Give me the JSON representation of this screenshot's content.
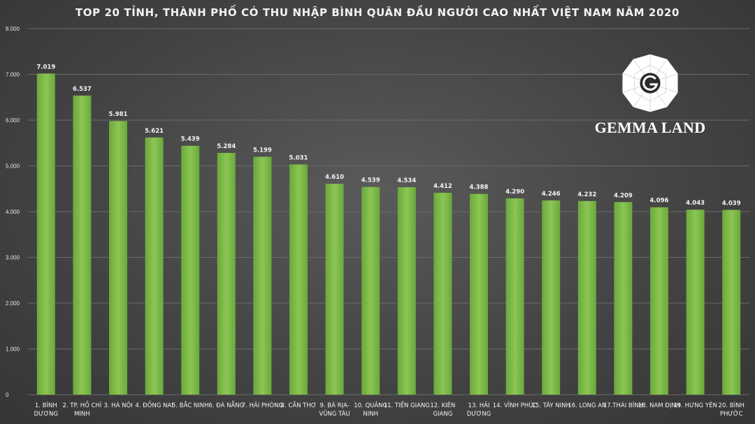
{
  "chart_data": {
    "type": "bar",
    "title": "TOP 20 TỈNH, THÀNH PHỐ CÓ THU NHẬP BÌNH QUÂN ĐẦU NGƯỜI CAO NHẤT VIỆT NAM NĂM 2020",
    "categories": [
      "1. BÌNH DƯƠNG",
      "2. TP. HỒ CHÍ MINH",
      "3. HÀ NỘI",
      "4. ĐỒNG NAI",
      "5. BẮC NINH",
      "6. ĐÀ NẴNG",
      "7. HẢI PHÒNG",
      "8. CẦN THƠ",
      "9. BÀ RỊA-VŨNG TÀU",
      "10. QUẢNG NINH",
      "11. TIỀN GIANG",
      "12. KIÊN GIANG",
      "13. HẢI DƯƠNG",
      "14. VĨNH PHÚC",
      "15. TÂY NINH",
      "16. LONG AN",
      "17.THÁI BÌNH",
      "18. NAM ĐỊNH",
      "19. HƯNG YÊN",
      "20. BÌNH PHƯỚC"
    ],
    "category_lines": [
      [
        "1. BÌNH",
        "DƯƠNG"
      ],
      [
        "2. TP. HỒ CHÍ",
        "MINH"
      ],
      [
        "3. HÀ NỘI"
      ],
      [
        "4. ĐỒNG NAI"
      ],
      [
        "5. BẮC NINH"
      ],
      [
        "6. ĐÀ NẴNG"
      ],
      [
        "7. HẢI PHÒNG"
      ],
      [
        "8. CẦN THƠ"
      ],
      [
        "9. BÀ RỊA-",
        "VŨNG TÀU"
      ],
      [
        "10. QUẢNG",
        "NINH"
      ],
      [
        "11. TIỀN GIANG"
      ],
      [
        "12. KIÊN",
        "GIANG"
      ],
      [
        "13. HẢI",
        "DƯƠNG"
      ],
      [
        "14. VĨNH PHÚC"
      ],
      [
        "15. TÂY NINH"
      ],
      [
        "16. LONG AN"
      ],
      [
        "17.THÁI BÌNH"
      ],
      [
        "18. NAM ĐỊNH"
      ],
      [
        "19. HƯNG YÊN"
      ],
      [
        "20. BÌNH",
        "PHƯỚC"
      ]
    ],
    "values": [
      7019,
      6537,
      5981,
      5621,
      5439,
      5284,
      5199,
      5031,
      4610,
      4539,
      4534,
      4412,
      4388,
      4290,
      4246,
      4232,
      4209,
      4096,
      4043,
      4039
    ],
    "value_labels": [
      "7.019",
      "6.537",
      "5.981",
      "5.621",
      "5.439",
      "5.284",
      "5.199",
      "5.031",
      "4.610",
      "4.539",
      "4.534",
      "4.412",
      "4.388",
      "4.290",
      "4.246",
      "4.232",
      "4.209",
      "4.096",
      "4.043",
      "4.039"
    ],
    "ylim": [
      0,
      8000
    ],
    "yticks": [
      0,
      1000,
      2000,
      3000,
      4000,
      5000,
      6000,
      7000,
      8000
    ],
    "ytick_labels": [
      "0",
      "1.000",
      "2.000",
      "3.000",
      "4.000",
      "5.000",
      "6.000",
      "7.000",
      "8.000"
    ],
    "xlabel": "",
    "ylabel": "",
    "grid": true,
    "bar_color": "#7ab648",
    "bar_color_light": "#9ccf5e"
  },
  "brand": {
    "name": "GEMMA LAND",
    "logo_icon": "gemma-land-logo-icon"
  }
}
